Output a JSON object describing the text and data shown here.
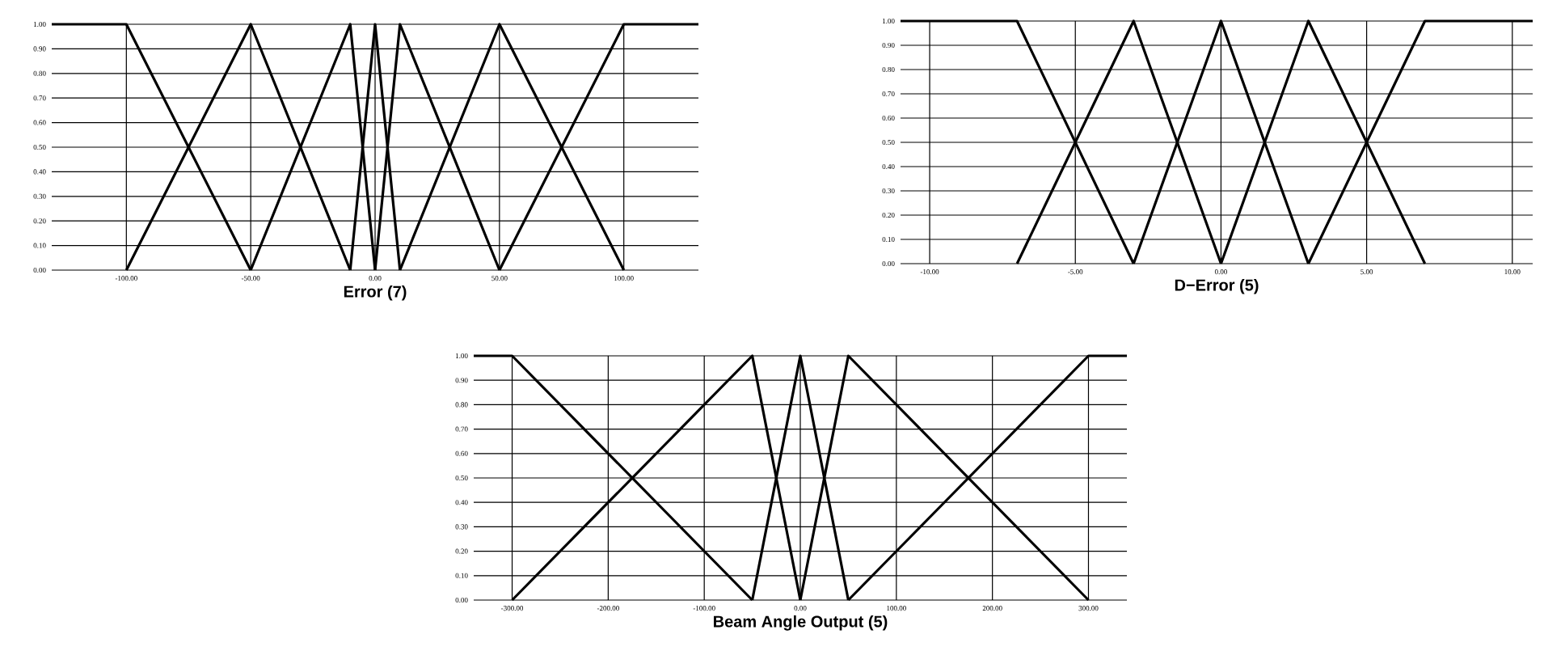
{
  "chart_data": [
    {
      "type": "line",
      "xlabel": "Error (7)",
      "xlim": [
        -130,
        130
      ],
      "ylim": [
        0,
        1
      ],
      "grid": true,
      "marker": "none",
      "line_style": "solid",
      "xticks": [
        {
          "value": -100,
          "label": "-100.00"
        },
        {
          "value": -50,
          "label": "-50.00"
        },
        {
          "value": 0,
          "label": "0.00"
        },
        {
          "value": 50,
          "label": "50.00"
        },
        {
          "value": 100,
          "label": "100.00"
        }
      ],
      "yticks": [
        {
          "value": 0,
          "label": "0.00"
        },
        {
          "value": 0.1,
          "label": "0.10"
        },
        {
          "value": 0.2,
          "label": "0.20"
        },
        {
          "value": 0.3,
          "label": "0.30"
        },
        {
          "value": 0.4,
          "label": "0.40"
        },
        {
          "value": 0.5,
          "label": "0.50"
        },
        {
          "value": 0.6,
          "label": "0.60"
        },
        {
          "value": 0.7,
          "label": "0.70"
        },
        {
          "value": 0.8,
          "label": "0.80"
        },
        {
          "value": 0.9,
          "label": "0.90"
        },
        {
          "value": 1,
          "label": "1.00"
        }
      ],
      "series": [
        {
          "color": "#000000",
          "x": [
            -130,
            -100,
            -50
          ],
          "values": [
            1,
            1,
            0
          ]
        },
        {
          "color": "#000000",
          "x": [
            -100,
            -50,
            -10
          ],
          "values": [
            0,
            1,
            0
          ]
        },
        {
          "color": "#000000",
          "x": [
            -50,
            -10,
            0
          ],
          "values": [
            0,
            1,
            0
          ]
        },
        {
          "color": "#000000",
          "x": [
            -10,
            0,
            10
          ],
          "values": [
            0,
            1,
            0
          ]
        },
        {
          "color": "#000000",
          "x": [
            0,
            10,
            50
          ],
          "values": [
            0,
            1,
            0
          ]
        },
        {
          "color": "#000000",
          "x": [
            10,
            50,
            100
          ],
          "values": [
            0,
            1,
            0
          ]
        },
        {
          "color": "#000000",
          "x": [
            50,
            100,
            130
          ],
          "values": [
            0,
            1,
            1
          ]
        }
      ]
    },
    {
      "type": "line",
      "xlabel": "D−Error (5)",
      "xlim": [
        -11,
        10.7
      ],
      "ylim": [
        0,
        1
      ],
      "grid": true,
      "marker": "none",
      "line_style": "solid",
      "xticks": [
        {
          "value": -10,
          "label": "-10.00"
        },
        {
          "value": -5,
          "label": "-5.00"
        },
        {
          "value": 0,
          "label": "0.00"
        },
        {
          "value": 5,
          "label": "5.00"
        },
        {
          "value": 10,
          "label": "10.00"
        }
      ],
      "yticks": [
        {
          "value": 0,
          "label": "0.00"
        },
        {
          "value": 0.1,
          "label": "0.10"
        },
        {
          "value": 0.2,
          "label": "0.20"
        },
        {
          "value": 0.3,
          "label": "0.30"
        },
        {
          "value": 0.4,
          "label": "0.40"
        },
        {
          "value": 0.5,
          "label": "0.50"
        },
        {
          "value": 0.6,
          "label": "0.60"
        },
        {
          "value": 0.7,
          "label": "0.70"
        },
        {
          "value": 0.8,
          "label": "0.80"
        },
        {
          "value": 0.9,
          "label": "0.90"
        },
        {
          "value": 1,
          "label": "1.00"
        }
      ],
      "series": [
        {
          "color": "#000000",
          "x": [
            -11,
            -7,
            -3
          ],
          "values": [
            1,
            1,
            0
          ]
        },
        {
          "color": "#000000",
          "x": [
            -7,
            -3,
            0
          ],
          "values": [
            0,
            1,
            0
          ]
        },
        {
          "color": "#000000",
          "x": [
            -3,
            0,
            3
          ],
          "values": [
            0,
            1,
            0
          ]
        },
        {
          "color": "#000000",
          "x": [
            0,
            3,
            7
          ],
          "values": [
            0,
            1,
            0
          ]
        },
        {
          "color": "#000000",
          "x": [
            3,
            7,
            10.7
          ],
          "values": [
            0,
            1,
            1
          ]
        }
      ]
    },
    {
      "type": "line",
      "xlabel": "Beam Angle Output (5)",
      "xlim": [
        -340,
        340
      ],
      "ylim": [
        0,
        1
      ],
      "grid": true,
      "marker": "none",
      "line_style": "solid",
      "xticks": [
        {
          "value": -300,
          "label": "-300.00"
        },
        {
          "value": -200,
          "label": "-200.00"
        },
        {
          "value": -100,
          "label": "-100.00"
        },
        {
          "value": 0,
          "label": "0.00"
        },
        {
          "value": 100,
          "label": "100.00"
        },
        {
          "value": 200,
          "label": "200.00"
        },
        {
          "value": 300,
          "label": "300.00"
        }
      ],
      "yticks": [
        {
          "value": 0,
          "label": "0.00"
        },
        {
          "value": 0.1,
          "label": "0.10"
        },
        {
          "value": 0.2,
          "label": "0.20"
        },
        {
          "value": 0.3,
          "label": "0.30"
        },
        {
          "value": 0.4,
          "label": "0.40"
        },
        {
          "value": 0.5,
          "label": "0.50"
        },
        {
          "value": 0.6,
          "label": "0.60"
        },
        {
          "value": 0.7,
          "label": "0.70"
        },
        {
          "value": 0.8,
          "label": "0.80"
        },
        {
          "value": 0.9,
          "label": "0.90"
        },
        {
          "value": 1,
          "label": "1.00"
        }
      ],
      "series": [
        {
          "color": "#000000",
          "x": [
            -340,
            -300,
            -50
          ],
          "values": [
            1,
            1,
            0
          ]
        },
        {
          "color": "#000000",
          "x": [
            -300,
            -50,
            0
          ],
          "values": [
            0,
            1,
            0
          ]
        },
        {
          "color": "#000000",
          "x": [
            -50,
            0,
            50
          ],
          "values": [
            0,
            1,
            0
          ]
        },
        {
          "color": "#000000",
          "x": [
            0,
            50,
            300
          ],
          "values": [
            0,
            1,
            0
          ]
        },
        {
          "color": "#000000",
          "x": [
            50,
            300,
            340
          ],
          "values": [
            0,
            1,
            1
          ]
        }
      ]
    }
  ]
}
